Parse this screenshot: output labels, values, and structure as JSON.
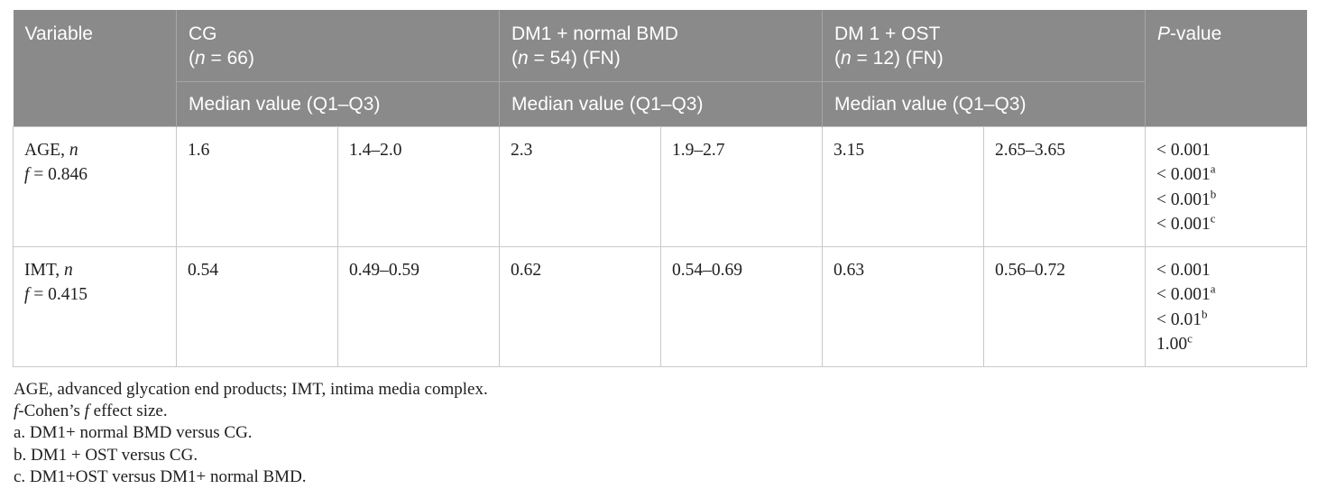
{
  "colors": {
    "header_bg": "#8a8a8a",
    "header_text": "#ffffff",
    "body_text": "#202020",
    "border_body": "#c9c9c9",
    "border_header": "#a6a6a6"
  },
  "table": {
    "header": {
      "variable_label": "Variable",
      "groups": [
        {
          "name": "CG",
          "n_prefix": "(",
          "n_symbol": "n",
          "n_suffix": " = 66)"
        },
        {
          "name": "DM1 + normal BMD",
          "n_prefix": "(",
          "n_symbol": "n",
          "n_suffix": " = 54) (FN)"
        },
        {
          "name": "DM 1 + OST",
          "n_prefix": "(",
          "n_symbol": "n",
          "n_suffix": " = 12) (FN)"
        }
      ],
      "subheader_label": "Median value (Q1–Q3)",
      "pvalue": {
        "p_symbol": "P",
        "suffix": "-value"
      }
    },
    "rows": [
      {
        "variable_name": "AGE, ",
        "n_symbol": "n",
        "f_symbol": "f",
        "f_value": " = 0.846",
        "cells": [
          "1.6",
          "1.4–2.0",
          "2.3",
          "1.9–2.7",
          "3.15",
          "2.65–3.65"
        ],
        "p_values": [
          {
            "value": "< 0.001",
            "sup": ""
          },
          {
            "value": "< 0.001",
            "sup": "a"
          },
          {
            "value": "< 0.001",
            "sup": "b"
          },
          {
            "value": "< 0.001",
            "sup": "c"
          }
        ]
      },
      {
        "variable_name": "IMT, ",
        "n_symbol": "n",
        "f_symbol": "f",
        "f_value": " = 0.415",
        "cells": [
          "0.54",
          "0.49–0.59",
          "0.62",
          "0.54–0.69",
          "0.63",
          "0.56–0.72"
        ],
        "p_values": [
          {
            "value": "< 0.001",
            "sup": ""
          },
          {
            "value": "< 0.001",
            "sup": "a"
          },
          {
            "value": "< 0.01",
            "sup": "b"
          },
          {
            "value": "1.00",
            "sup": "c"
          }
        ]
      }
    ]
  },
  "footnotes": {
    "abbreviations": "AGE, advanced glycation end products; IMT, intima media complex.",
    "effect_size": {
      "f1": "f",
      "mid": "-Cohen’s ",
      "f2": "f",
      "tail": " effect size."
    },
    "note_a": "a. DM1+ normal BMD versus CG.",
    "note_b": "b. DM1 + OST versus CG.",
    "note_c": "c. DM1+OST versus DM1+ normal BMD."
  }
}
